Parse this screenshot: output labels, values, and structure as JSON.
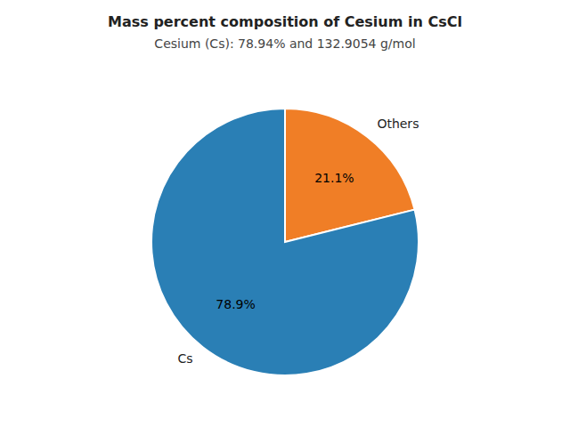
{
  "chart_data": {
    "type": "pie",
    "title": "Mass percent composition of Cesium in CsCl",
    "subtitle": "Cesium (Cs): 78.94% and 132.9054 g/mol",
    "categories": [
      "Others",
      "Cs"
    ],
    "values": [
      21.1,
      78.9
    ],
    "value_labels": [
      "21.1%",
      "78.9%"
    ],
    "colors": [
      "#f07e26",
      "#2a7fb5"
    ],
    "data_labels": true
  }
}
